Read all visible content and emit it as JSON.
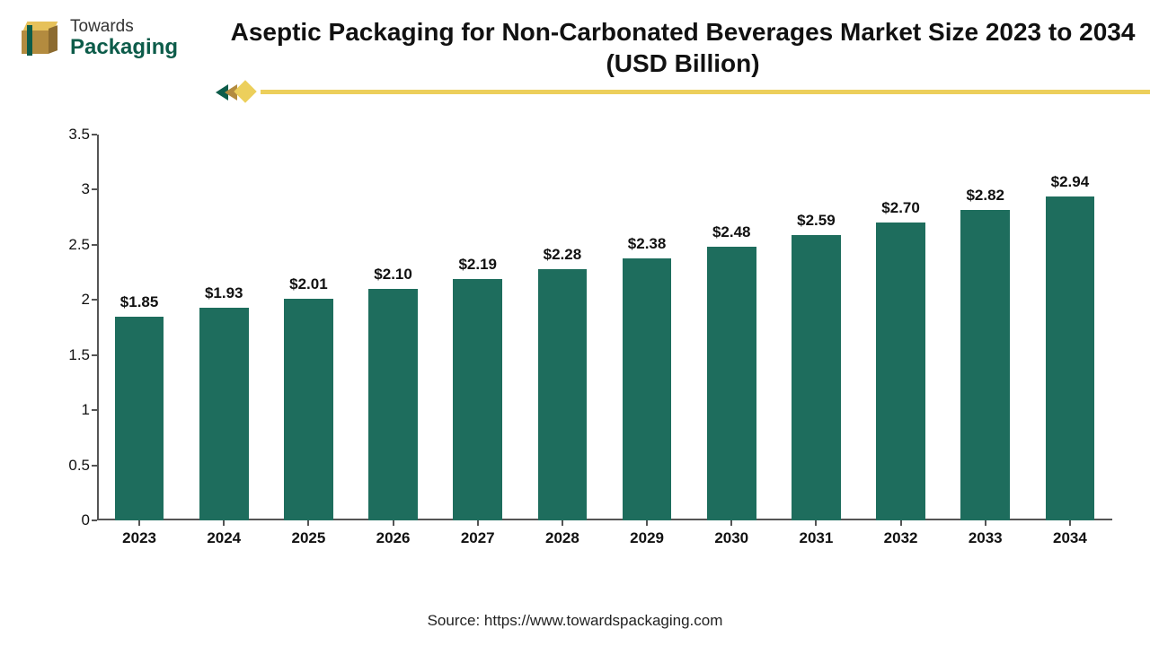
{
  "logo": {
    "line1": "Towards",
    "line2": "Packaging",
    "colors": {
      "brand_green": "#0d5c4a",
      "brand_gold": "#eccf5b",
      "brand_tan": "#b38b3f"
    }
  },
  "title": {
    "text": "Aseptic Packaging for Non-Carbonated Beverages Market Size 2023 to 2034 (USD Billion)",
    "fontsize": 28,
    "fontweight": "700",
    "color": "#111111"
  },
  "divider": {
    "rule_color": "#eccf5b",
    "chevron_color_1": "#0d5c4a",
    "chevron_color_2": "#b38b3f",
    "diamond_color": "#eccf5b"
  },
  "chart": {
    "type": "bar",
    "categories": [
      "2023",
      "2024",
      "2025",
      "2026",
      "2027",
      "2028",
      "2029",
      "2030",
      "2031",
      "2032",
      "2033",
      "2034"
    ],
    "values": [
      1.85,
      1.93,
      2.01,
      2.1,
      2.19,
      2.28,
      2.38,
      2.48,
      2.59,
      2.7,
      2.82,
      2.94
    ],
    "value_labels": [
      "$1.85",
      "$1.93",
      "$2.01",
      "$2.10",
      "$2.19",
      "$2.28",
      "$2.38",
      "$2.48",
      "$2.59",
      "$2.70",
      "$2.82",
      "$2.94"
    ],
    "bar_color": "#1e6d5d",
    "ylim": [
      0,
      3.5
    ],
    "ytick_step": 0.5,
    "ytick_labels": [
      "0",
      "0.5",
      "1",
      "1.5",
      "2",
      "2.5",
      "3",
      "3.5"
    ],
    "axis_color": "#555555",
    "label_fontsize": 17,
    "value_label_fontsize": 17,
    "value_label_fontweight": "700",
    "xcat_fontweight": "700",
    "bar_width_ratio": 0.58,
    "background_color": "#ffffff",
    "grid": false
  },
  "source": {
    "text": "Source: https://www.towardspackaging.com",
    "fontsize": 17,
    "color": "#222222"
  }
}
